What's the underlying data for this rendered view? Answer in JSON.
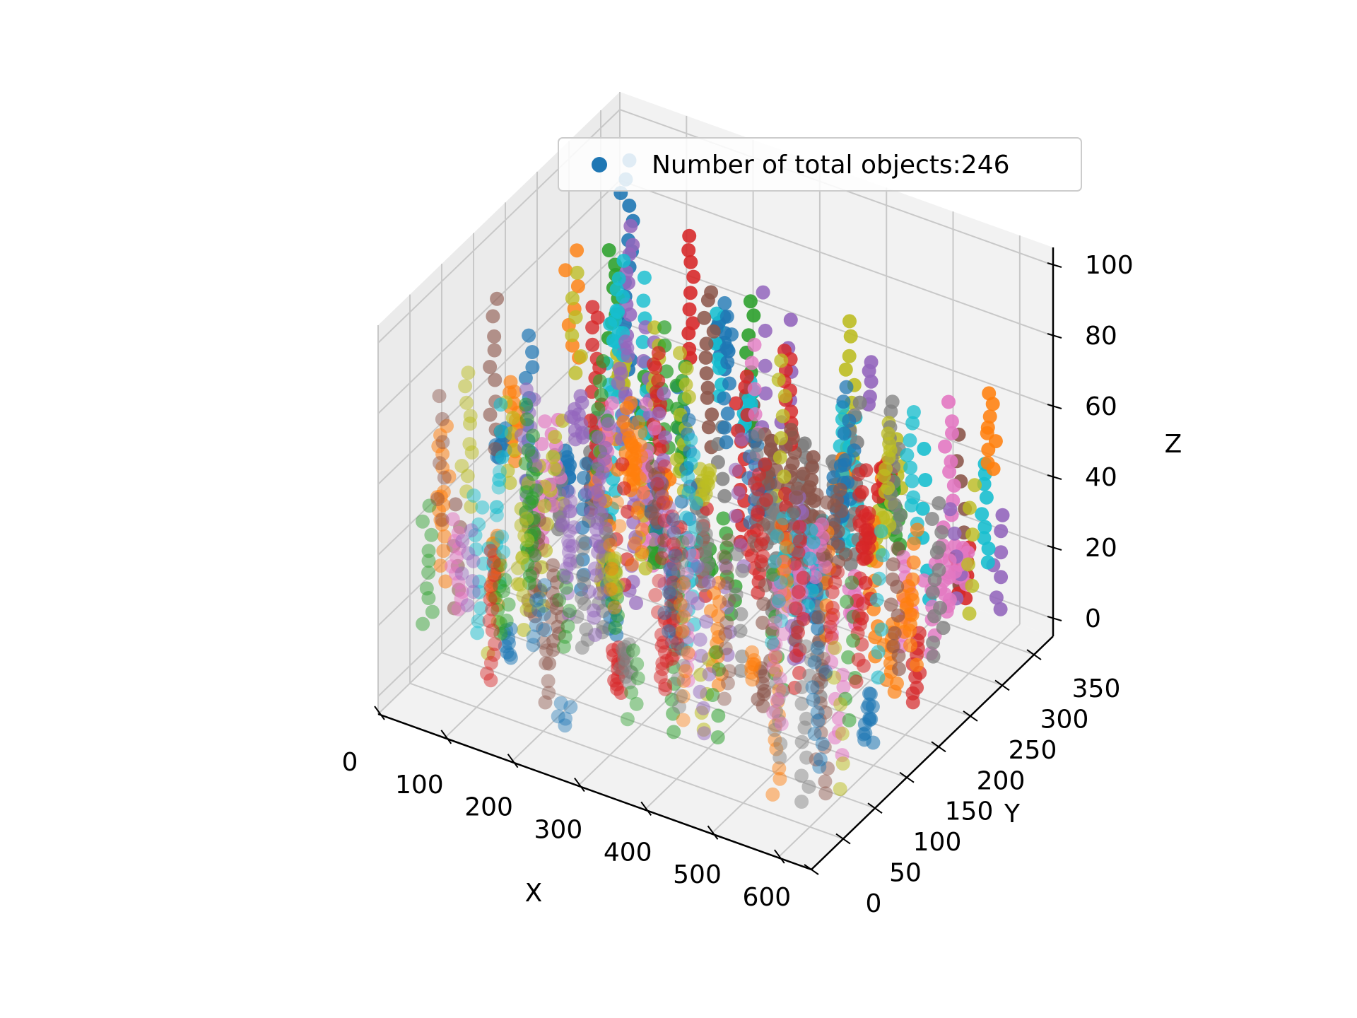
{
  "chart_data": {
    "type": "scatter",
    "projection": "3d",
    "title": "",
    "xlabel": "X",
    "ylabel": "Y",
    "zlabel": "Z",
    "xlim": [
      0,
      650
    ],
    "ylim": [
      0,
      380
    ],
    "zlim": [
      -5,
      105
    ],
    "x_ticks": [
      "0",
      "100",
      "200",
      "300",
      "400",
      "500",
      "600"
    ],
    "y_ticks": [
      "0",
      "50",
      "100",
      "150",
      "200",
      "250",
      "300",
      "350"
    ],
    "z_ticks": [
      "0",
      "20",
      "40",
      "60",
      "80",
      "100"
    ],
    "grid": true,
    "legend": {
      "placement": "top",
      "entries": [
        {
          "label": "Number of total objects:246",
          "color": "#1f77b4"
        }
      ]
    },
    "series_colors": [
      "#1f77b4",
      "#ff7f0e",
      "#2ca02c",
      "#d62728",
      "#9467bd",
      "#8c564b",
      "#e377c2",
      "#7f7f7f",
      "#bcbd22",
      "#17becf"
    ],
    "object_count": 246
  }
}
